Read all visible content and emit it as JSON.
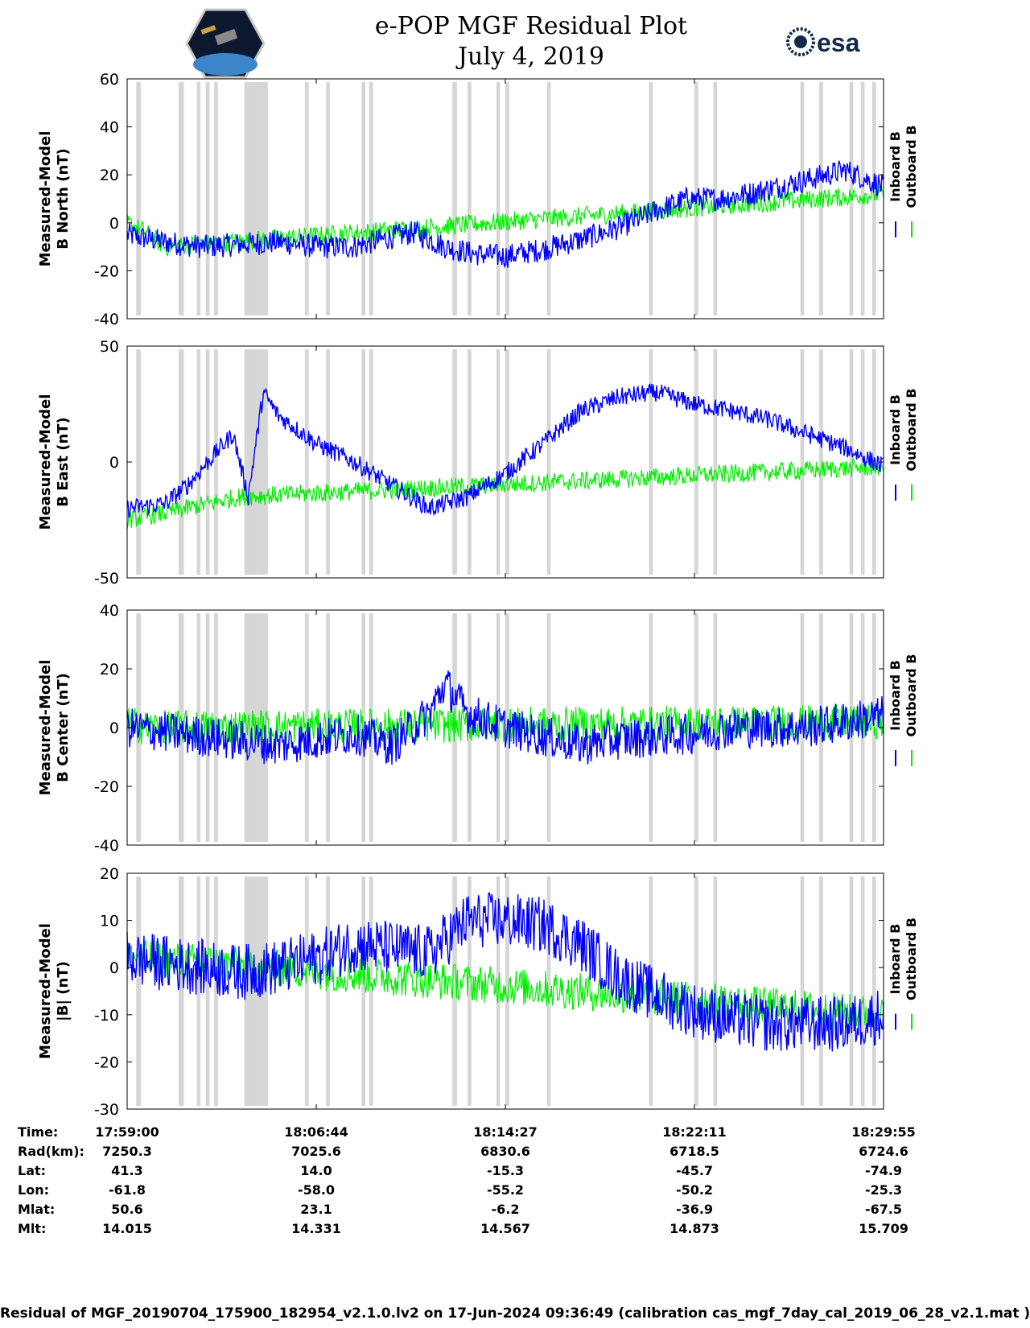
{
  "title": {
    "line1": "e-POP MGF Residual Plot",
    "line2": "July 4, 2019"
  },
  "logos": {
    "left": "cassiope-mission-logo",
    "right_text": "esa"
  },
  "colors": {
    "inboard": "#0000ff",
    "outboard": "#00ee00",
    "gap_band": "#d6d6d6",
    "axis": "#000000"
  },
  "chart_data": [
    {
      "type": "line",
      "ylabel": [
        "Measured-Model",
        "B North (nT)"
      ],
      "ylim": [
        -40,
        60
      ],
      "yticks": [
        -40,
        -20,
        0,
        20,
        40,
        60
      ],
      "legend": [
        "Inboard B",
        "Outboard B"
      ],
      "series": [
        {
          "name": "Inboard B",
          "trend": [
            [
              0,
              -5
            ],
            [
              0.05,
              -8
            ],
            [
              0.1,
              -10
            ],
            [
              0.15,
              -9
            ],
            [
              0.2,
              -8
            ],
            [
              0.25,
              -10
            ],
            [
              0.3,
              -10
            ],
            [
              0.35,
              -6
            ],
            [
              0.38,
              -4
            ],
            [
              0.42,
              -10
            ],
            [
              0.46,
              -13
            ],
            [
              0.5,
              -14
            ],
            [
              0.55,
              -11
            ],
            [
              0.6,
              -7
            ],
            [
              0.65,
              -2
            ],
            [
              0.7,
              5
            ],
            [
              0.74,
              10
            ],
            [
              0.78,
              10
            ],
            [
              0.82,
              12
            ],
            [
              0.86,
              15
            ],
            [
              0.9,
              18
            ],
            [
              0.95,
              22
            ],
            [
              1.0,
              15
            ]
          ],
          "noise": 5
        },
        {
          "name": "Outboard B",
          "trend": [
            [
              0,
              0
            ],
            [
              0.02,
              -3
            ],
            [
              0.05,
              -10
            ],
            [
              1.0,
              12
            ]
          ],
          "noise": 4
        }
      ]
    },
    {
      "type": "line",
      "ylabel": [
        "Measured-Model",
        "B East (nT)"
      ],
      "ylim": [
        -50,
        50
      ],
      "yticks": [
        -50,
        0,
        50
      ],
      "legend": [
        "Inboard B",
        "Outboard B"
      ],
      "series": [
        {
          "name": "Inboard B",
          "trend": [
            [
              0,
              -20
            ],
            [
              0.05,
              -18
            ],
            [
              0.08,
              -10
            ],
            [
              0.12,
              5
            ],
            [
              0.14,
              12
            ],
            [
              0.16,
              -15
            ],
            [
              0.18,
              30
            ],
            [
              0.2,
              20
            ],
            [
              0.25,
              8
            ],
            [
              0.3,
              0
            ],
            [
              0.35,
              -10
            ],
            [
              0.4,
              -20
            ],
            [
              0.45,
              -15
            ],
            [
              0.5,
              -5
            ],
            [
              0.55,
              8
            ],
            [
              0.6,
              22
            ],
            [
              0.65,
              28
            ],
            [
              0.7,
              30
            ],
            [
              0.75,
              25
            ],
            [
              0.8,
              22
            ],
            [
              0.85,
              18
            ],
            [
              0.9,
              12
            ],
            [
              0.95,
              6
            ],
            [
              1.0,
              -2
            ]
          ],
          "noise": 4
        },
        {
          "name": "Outboard B",
          "trend": [
            [
              0,
              -25
            ],
            [
              0.05,
              -22
            ],
            [
              0.15,
              -15
            ],
            [
              1.0,
              -2
            ]
          ],
          "noise": 4
        }
      ]
    },
    {
      "type": "line",
      "ylabel": [
        "Measured-Model",
        "B Center (nT)"
      ],
      "ylim": [
        -40,
        40
      ],
      "yticks": [
        -40,
        -20,
        0,
        20,
        40
      ],
      "legend": [
        "Inboard B",
        "Outboard B"
      ],
      "series": [
        {
          "name": "Inboard B",
          "trend": [
            [
              0,
              0
            ],
            [
              0.1,
              -3
            ],
            [
              0.2,
              -6
            ],
            [
              0.3,
              -2
            ],
            [
              0.35,
              -6
            ],
            [
              0.4,
              5
            ],
            [
              0.42,
              15
            ],
            [
              0.45,
              5
            ],
            [
              0.5,
              0
            ],
            [
              0.55,
              -3
            ],
            [
              0.6,
              -6
            ],
            [
              0.65,
              -4
            ],
            [
              0.7,
              -3
            ],
            [
              0.75,
              -2
            ],
            [
              0.8,
              0
            ],
            [
              0.85,
              0
            ],
            [
              0.9,
              0
            ],
            [
              0.95,
              2
            ],
            [
              1.0,
              4
            ]
          ],
          "noise": 7
        },
        {
          "name": "Outboard B",
          "trend": [
            [
              0,
              2
            ],
            [
              0.02,
              0
            ],
            [
              1.0,
              2
            ]
          ],
          "noise": 6
        }
      ]
    },
    {
      "type": "line",
      "ylabel": [
        "Measured-Model",
        "|B| (nT)"
      ],
      "ylim": [
        -30,
        20
      ],
      "yticks": [
        -30,
        -20,
        -10,
        0,
        10,
        20
      ],
      "legend": [
        "Inboard B",
        "Outboard B"
      ],
      "series": [
        {
          "name": "Inboard B",
          "trend": [
            [
              0,
              2
            ],
            [
              0.1,
              0
            ],
            [
              0.15,
              -1
            ],
            [
              0.2,
              0
            ],
            [
              0.25,
              2
            ],
            [
              0.3,
              5
            ],
            [
              0.35,
              4
            ],
            [
              0.4,
              3
            ],
            [
              0.45,
              10
            ],
            [
              0.5,
              10
            ],
            [
              0.55,
              9
            ],
            [
              0.6,
              5
            ],
            [
              0.65,
              -2
            ],
            [
              0.7,
              -6
            ],
            [
              0.75,
              -9
            ],
            [
              0.8,
              -11
            ],
            [
              0.85,
              -12
            ],
            [
              0.9,
              -12
            ],
            [
              0.95,
              -12
            ],
            [
              1.0,
              -10
            ]
          ],
          "noise": 6
        },
        {
          "name": "Outboard B",
          "trend": [
            [
              0,
              2
            ],
            [
              0.02,
              2
            ],
            [
              1.0,
              -10
            ]
          ],
          "noise": 4
        }
      ]
    }
  ],
  "gap_bands": [
    [
      0.012,
      0.018
    ],
    [
      0.068,
      0.075
    ],
    [
      0.092,
      0.097
    ],
    [
      0.104,
      0.109
    ],
    [
      0.115,
      0.12
    ],
    [
      0.155,
      0.172
    ],
    [
      0.172,
      0.186
    ],
    [
      0.235,
      0.24
    ],
    [
      0.263,
      0.268
    ],
    [
      0.31,
      0.315
    ],
    [
      0.32,
      0.325
    ],
    [
      0.43,
      0.436
    ],
    [
      0.45,
      0.455
    ],
    [
      0.488,
      0.493
    ],
    [
      0.5,
      0.505
    ],
    [
      0.555,
      0.56
    ],
    [
      0.69,
      0.695
    ],
    [
      0.75,
      0.755
    ],
    [
      0.775,
      0.78
    ],
    [
      0.89,
      0.895
    ],
    [
      0.915,
      0.92
    ],
    [
      0.955,
      0.96
    ],
    [
      0.97,
      0.975
    ],
    [
      0.985,
      0.99
    ]
  ],
  "ephemeris": {
    "labels": [
      "Time:",
      "Rad(km):",
      "Lat:",
      "Lon:",
      "Mlat:",
      "Mlt:"
    ],
    "columns": [
      [
        "17:59:00",
        "7250.3",
        "41.3",
        "-61.8",
        "50.6",
        "14.015"
      ],
      [
        "18:06:44",
        "7025.6",
        "14.0",
        "-58.0",
        "23.1",
        "14.331"
      ],
      [
        "18:14:27",
        "6830.6",
        "-15.3",
        "-55.2",
        "-6.2",
        "14.567"
      ],
      [
        "18:22:11",
        "6718.5",
        "-45.7",
        "-50.2",
        "-36.9",
        "14.873"
      ],
      [
        "18:29:55",
        "6724.6",
        "-74.9",
        "-25.3",
        "-67.5",
        "15.709"
      ]
    ]
  },
  "footer": "Residual of MGF_20190704_175900_182954_v2.1.0.lv2 on 17-Jun-2024 09:36:49 (calibration cas_mgf_7day_cal_2019_06_28_v2.1.mat )"
}
